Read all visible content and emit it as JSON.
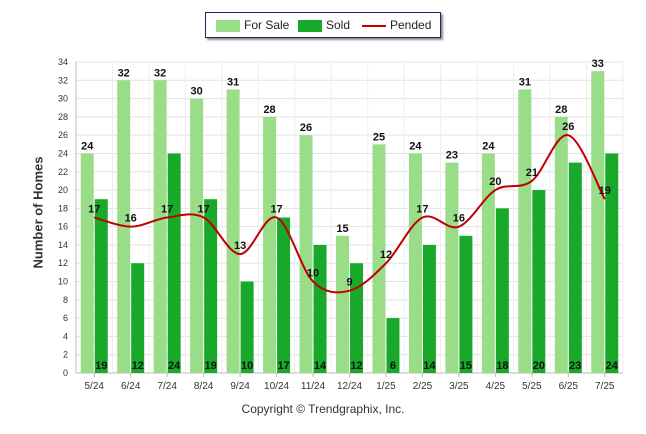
{
  "chart_data": {
    "type": "bar",
    "categories": [
      "5/24",
      "6/24",
      "7/24",
      "8/24",
      "9/24",
      "10/24",
      "11/24",
      "12/24",
      "1/25",
      "2/25",
      "3/25",
      "4/25",
      "5/25",
      "6/25",
      "7/25"
    ],
    "series": [
      {
        "name": "For Sale",
        "kind": "bar",
        "color": "#99dd88",
        "values": [
          24,
          32,
          32,
          30,
          31,
          28,
          26,
          15,
          25,
          24,
          23,
          24,
          31,
          28,
          33
        ]
      },
      {
        "name": "Sold",
        "kind": "bar",
        "color": "#18a82a",
        "values": [
          19,
          12,
          24,
          19,
          10,
          17,
          14,
          12,
          6,
          14,
          15,
          18,
          20,
          23,
          24
        ]
      },
      {
        "name": "Pended",
        "kind": "line",
        "color": "#c00000",
        "values": [
          17,
          16,
          17,
          17,
          13,
          17,
          10,
          9,
          12,
          17,
          16,
          20,
          21,
          26,
          19
        ]
      }
    ],
    "ylabel": "Number of Homes",
    "ylim": [
      0,
      34
    ],
    "yticks": [
      0,
      2,
      4,
      6,
      8,
      10,
      12,
      14,
      16,
      18,
      20,
      22,
      24,
      26,
      28,
      30,
      32,
      34
    ],
    "grid": true,
    "legend_placement": "top-center"
  },
  "copyright": "Copyright © Trendgraphix, Inc."
}
